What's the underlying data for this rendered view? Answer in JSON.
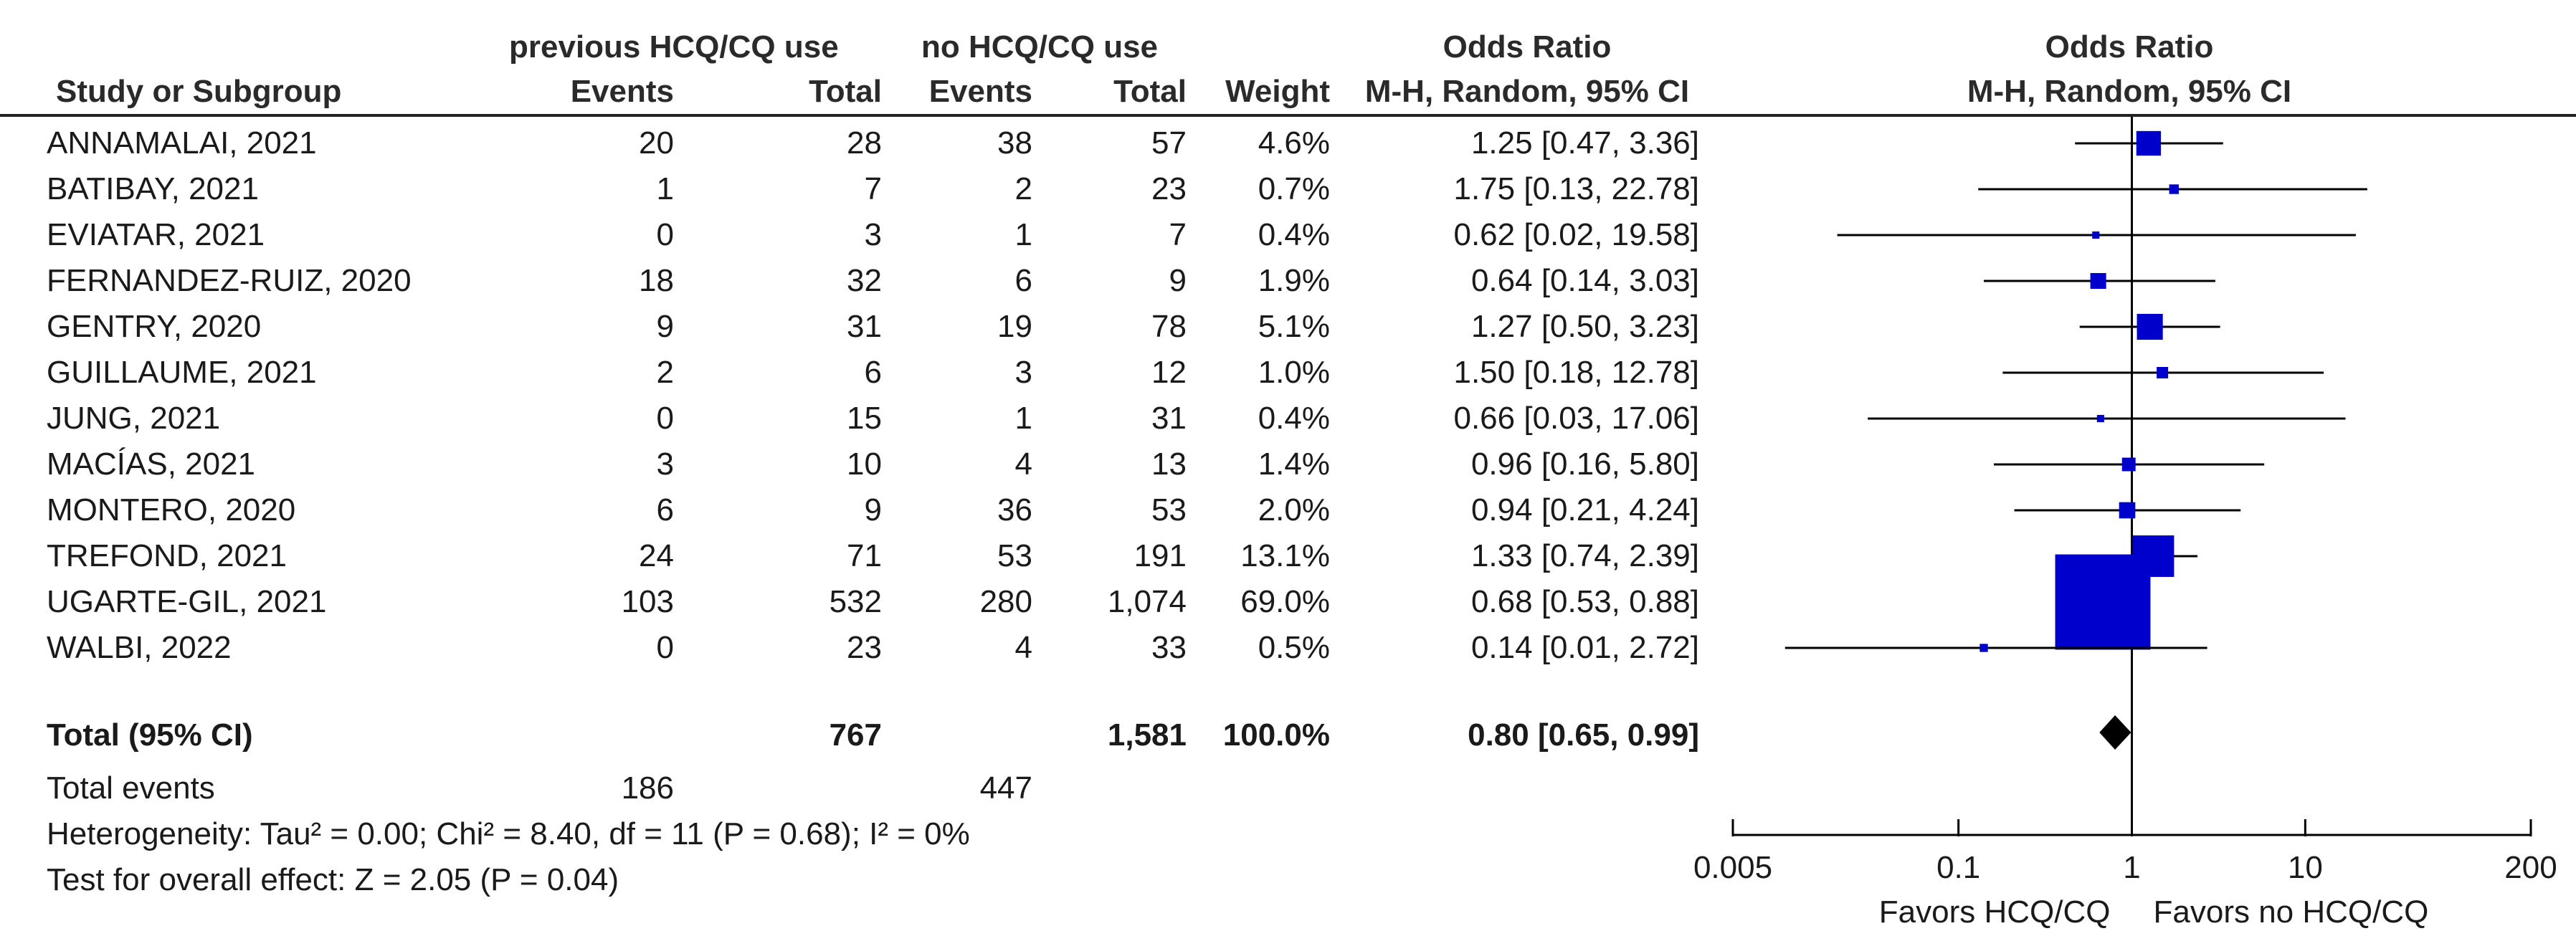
{
  "header": {
    "group1": "previous HCQ/CQ use",
    "group2": "no HCQ/CQ use",
    "or_title": "Odds Ratio",
    "or_method": "M-H, Random, 95% CI",
    "plot_title": "Odds Ratio",
    "plot_method": "M-H, Random, 95% CI",
    "study_col": "Study or Subgroup",
    "events": "Events",
    "total": "Total",
    "weight": "Weight"
  },
  "studies": [
    {
      "name": "ANNAMALAI, 2021",
      "e1": "20",
      "t1": "28",
      "e2": "38",
      "t2": "57",
      "weight": "4.6%",
      "ci": "1.25 [0.47, 3.36]"
    },
    {
      "name": "BATIBAY, 2021",
      "e1": "1",
      "t1": "7",
      "e2": "2",
      "t2": "23",
      "weight": "0.7%",
      "ci": "1.75 [0.13, 22.78]"
    },
    {
      "name": "EVIATAR, 2021",
      "e1": "0",
      "t1": "3",
      "e2": "1",
      "t2": "7",
      "weight": "0.4%",
      "ci": "0.62 [0.02, 19.58]"
    },
    {
      "name": "FERNANDEZ-RUIZ, 2020",
      "e1": "18",
      "t1": "32",
      "e2": "6",
      "t2": "9",
      "weight": "1.9%",
      "ci": "0.64 [0.14, 3.03]"
    },
    {
      "name": "GENTRY, 2020",
      "e1": "9",
      "t1": "31",
      "e2": "19",
      "t2": "78",
      "weight": "5.1%",
      "ci": "1.27 [0.50, 3.23]"
    },
    {
      "name": "GUILLAUME, 2021",
      "e1": "2",
      "t1": "6",
      "e2": "3",
      "t2": "12",
      "weight": "1.0%",
      "ci": "1.50 [0.18, 12.78]"
    },
    {
      "name": "JUNG, 2021",
      "e1": "0",
      "t1": "15",
      "e2": "1",
      "t2": "31",
      "weight": "0.4%",
      "ci": "0.66 [0.03, 17.06]"
    },
    {
      "name": "MACÍAS, 2021",
      "e1": "3",
      "t1": "10",
      "e2": "4",
      "t2": "13",
      "weight": "1.4%",
      "ci": "0.96 [0.16, 5.80]"
    },
    {
      "name": "MONTERO, 2020",
      "e1": "6",
      "t1": "9",
      "e2": "36",
      "t2": "53",
      "weight": "2.0%",
      "ci": "0.94 [0.21, 4.24]"
    },
    {
      "name": "TREFOND, 2021",
      "e1": "24",
      "t1": "71",
      "e2": "53",
      "t2": "191",
      "weight": "13.1%",
      "ci": "1.33 [0.74, 2.39]"
    },
    {
      "name": "UGARTE-GIL, 2021",
      "e1": "103",
      "t1": "532",
      "e2": "280",
      "t2": "1,074",
      "weight": "69.0%",
      "ci": "0.68 [0.53, 0.88]"
    },
    {
      "name": "WALBI, 2022",
      "e1": "0",
      "t1": "23",
      "e2": "4",
      "t2": "33",
      "weight": "0.5%",
      "ci": "0.14 [0.01, 2.72]"
    }
  ],
  "total": {
    "label": "Total (95% CI)",
    "t1": "767",
    "t2": "1,581",
    "weight": "100.0%",
    "ci": "0.80 [0.65, 0.99]"
  },
  "total_events": {
    "label": "Total events",
    "e1": "186",
    "e2": "447"
  },
  "heterogeneity": "Heterogeneity: Tau² = 0.00; Chi² = 8.40, df = 11 (P = 0.68); I² = 0%",
  "overall_effect": "Test for overall effect: Z = 2.05 (P = 0.04)",
  "chart_data": {
    "type": "scatter",
    "title": "Odds Ratio",
    "subtitle": "M-H, Random, 95% CI",
    "x_scale": "log",
    "xlim": [
      0.005,
      200
    ],
    "x_ticks": [
      "0.005",
      "0.1",
      "1",
      "10",
      "200"
    ],
    "x_tick_values": [
      0.005,
      0.1,
      1,
      10,
      200
    ],
    "reference_line": 1,
    "favors_left": "Favors HCQ/CQ",
    "favors_right": "Favors no HCQ/CQ",
    "series": [
      {
        "points": [
          {
            "study": "ANNAMALAI, 2021",
            "or": 1.25,
            "lo": 0.47,
            "hi": 3.36,
            "weight": 4.6
          },
          {
            "study": "BATIBAY, 2021",
            "or": 1.75,
            "lo": 0.13,
            "hi": 22.78,
            "weight": 0.7
          },
          {
            "study": "EVIATAR, 2021",
            "or": 0.62,
            "lo": 0.02,
            "hi": 19.58,
            "weight": 0.4
          },
          {
            "study": "FERNANDEZ-RUIZ, 2020",
            "or": 0.64,
            "lo": 0.14,
            "hi": 3.03,
            "weight": 1.9
          },
          {
            "study": "GENTRY, 2020",
            "or": 1.27,
            "lo": 0.5,
            "hi": 3.23,
            "weight": 5.1
          },
          {
            "study": "GUILLAUME, 2021",
            "or": 1.5,
            "lo": 0.18,
            "hi": 12.78,
            "weight": 1.0
          },
          {
            "study": "JUNG, 2021",
            "or": 0.66,
            "lo": 0.03,
            "hi": 17.06,
            "weight": 0.4
          },
          {
            "study": "MACÍAS, 2021",
            "or": 0.96,
            "lo": 0.16,
            "hi": 5.8,
            "weight": 1.4
          },
          {
            "study": "MONTERO, 2020",
            "or": 0.94,
            "lo": 0.21,
            "hi": 4.24,
            "weight": 2.0
          },
          {
            "study": "TREFOND, 2021",
            "or": 1.33,
            "lo": 0.74,
            "hi": 2.39,
            "weight": 13.1
          },
          {
            "study": "UGARTE-GIL, 2021",
            "or": 0.68,
            "lo": 0.53,
            "hi": 0.88,
            "weight": 69.0
          },
          {
            "study": "WALBI, 2022",
            "or": 0.14,
            "lo": 0.01,
            "hi": 2.72,
            "weight": 0.5
          }
        ]
      }
    ],
    "pooled": {
      "or": 0.8,
      "lo": 0.65,
      "hi": 0.99
    },
    "colors": {
      "marker": "#0000cc",
      "line": "#000000",
      "diamond": "#000000"
    }
  }
}
